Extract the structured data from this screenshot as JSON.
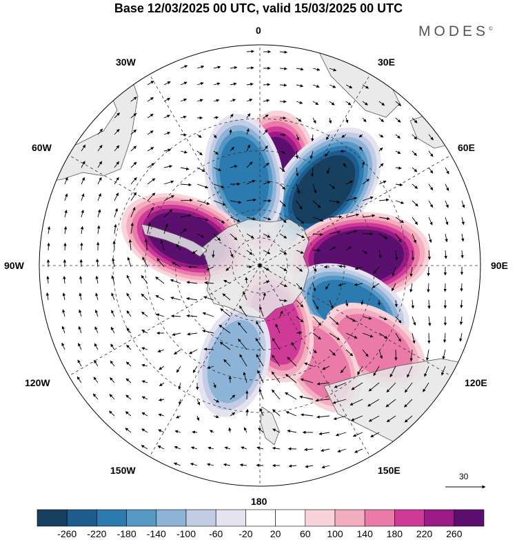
{
  "title": "Base 12/03/2025 00 UTC, valid 15/03/2025 00 UTC",
  "brand": "MODES",
  "brand_mark": "©",
  "longitude_labels": {
    "top": "0",
    "e30": "30E",
    "e60": "60E",
    "e90": "90E",
    "e120": "120E",
    "e150": "150E",
    "bottom": "180",
    "w150": "150W",
    "w120": "120W",
    "w90": "90W",
    "w60": "60W",
    "w30": "30W"
  },
  "reference_vector_label": "30",
  "colorbar": {
    "labels": [
      "-260",
      "-220",
      "-180",
      "-140",
      "-100",
      "-60",
      "-20",
      "20",
      "60",
      "100",
      "140",
      "180",
      "220",
      "260"
    ],
    "colors": [
      "#173f5f",
      "#1d5c8c",
      "#2c7bb0",
      "#5598c6",
      "#8db3d6",
      "#c2cce4",
      "#e4e3ef",
      "#ffffff",
      "#f8d3da",
      "#f4aec0",
      "#ea7ba8",
      "#cf3a99",
      "#9c1a86",
      "#5b0f6e"
    ]
  },
  "chart_data": {
    "type": "heatmap",
    "projection": "south polar stereographic",
    "title": "Base 12/03/2025 00 UTC, valid 15/03/2025 00 UTC",
    "color_scale": [
      -260,
      -220,
      -180,
      -140,
      -100,
      -60,
      -20,
      20,
      60,
      100,
      140,
      180,
      220,
      260
    ],
    "anomaly_centers": [
      {
        "lon": 8,
        "lat": -60,
        "value": 260
      },
      {
        "lon": 40,
        "lat": -55,
        "value": -260
      },
      {
        "lon": 85,
        "lat": -55,
        "value": 260
      },
      {
        "lon": 115,
        "lat": -55,
        "value": -180
      },
      {
        "lon": 125,
        "lat": -42,
        "value": 120
      },
      {
        "lon": 148,
        "lat": -50,
        "value": 100
      },
      {
        "lon": -10,
        "lat": -58,
        "value": -180
      },
      {
        "lon": -70,
        "lat": -62,
        "value": 220
      },
      {
        "lon": 165,
        "lat": -68,
        "value": 140
      },
      {
        "lon": -165,
        "lat": -55,
        "value": -120
      }
    ],
    "reference_vector": 30
  }
}
